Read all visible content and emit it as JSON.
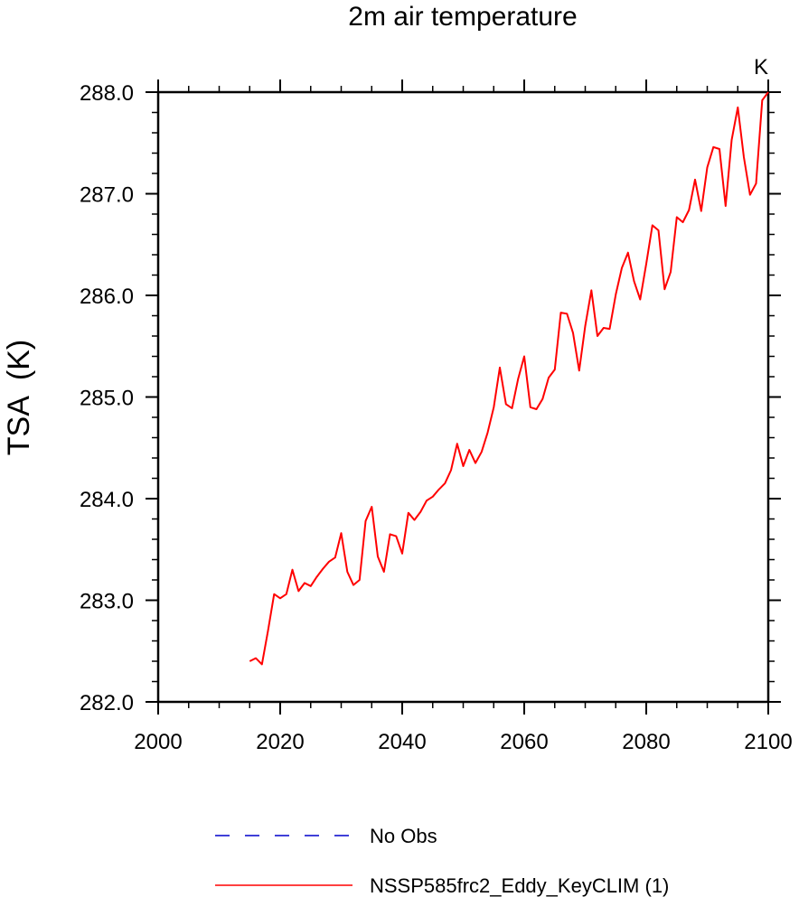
{
  "chart_data": {
    "type": "line",
    "title": "2m air temperature",
    "ylabel": "TSA  (K)",
    "xlabel": "",
    "units_label": "K",
    "xlim": [
      2000,
      2100
    ],
    "ylim": [
      282.0,
      288.0
    ],
    "x_ticks": [
      2000,
      2020,
      2040,
      2060,
      2080,
      2100
    ],
    "y_ticks": [
      "282.0",
      "283.0",
      "284.0",
      "285.0",
      "286.0",
      "287.0",
      "288.0"
    ],
    "grid": false,
    "legend_position": "bottom",
    "series": [
      {
        "name": "NSSP585frc2_Eddy_KeyCLIM (1)",
        "color": "#ff0000",
        "dash": "solid",
        "x": [
          2015,
          2016,
          2017,
          2018,
          2019,
          2020,
          2021,
          2022,
          2023,
          2024,
          2025,
          2026,
          2027,
          2028,
          2029,
          2030,
          2031,
          2032,
          2033,
          2034,
          2035,
          2036,
          2037,
          2038,
          2039,
          2040,
          2041,
          2042,
          2043,
          2044,
          2045,
          2046,
          2047,
          2048,
          2049,
          2050,
          2051,
          2052,
          2053,
          2054,
          2055,
          2056,
          2057,
          2058,
          2059,
          2060,
          2061,
          2062,
          2063,
          2064,
          2065,
          2066,
          2067,
          2068,
          2069,
          2070,
          2071,
          2072,
          2073,
          2074,
          2075,
          2076,
          2077,
          2078,
          2079,
          2080,
          2081,
          2082,
          2083,
          2084,
          2085,
          2086,
          2087,
          2088,
          2089,
          2090,
          2091,
          2092,
          2093,
          2094,
          2095,
          2096,
          2097,
          2098,
          2099,
          2100
        ],
        "y": [
          282.4,
          282.43,
          282.37,
          282.7,
          283.06,
          283.02,
          283.06,
          283.3,
          283.09,
          283.17,
          283.14,
          283.23,
          283.31,
          283.38,
          283.42,
          283.66,
          283.28,
          283.15,
          283.2,
          283.78,
          283.92,
          283.43,
          283.28,
          283.65,
          283.63,
          283.46,
          283.86,
          283.79,
          283.87,
          283.98,
          284.02,
          284.09,
          284.15,
          284.28,
          284.54,
          284.32,
          284.48,
          284.35,
          284.46,
          284.65,
          284.9,
          285.29,
          284.93,
          284.89,
          285.18,
          285.4,
          284.9,
          284.88,
          284.98,
          285.19,
          285.27,
          285.83,
          285.82,
          285.63,
          285.26,
          285.7,
          286.05,
          285.6,
          285.68,
          285.67,
          286.01,
          286.27,
          286.42,
          286.14,
          285.96,
          286.31,
          286.69,
          286.64,
          286.06,
          286.23,
          286.77,
          286.72,
          286.84,
          287.14,
          286.83,
          287.26,
          287.46,
          287.44,
          286.88,
          287.53,
          287.85,
          287.36,
          286.99,
          287.1,
          287.92,
          288.0
        ]
      }
    ],
    "legend": [
      {
        "label": "No Obs",
        "color": "#0000cc",
        "dash": "dashed"
      },
      {
        "label": "NSSP585frc2_Eddy_KeyCLIM (1)",
        "color": "#ff0000",
        "dash": "solid"
      }
    ]
  }
}
